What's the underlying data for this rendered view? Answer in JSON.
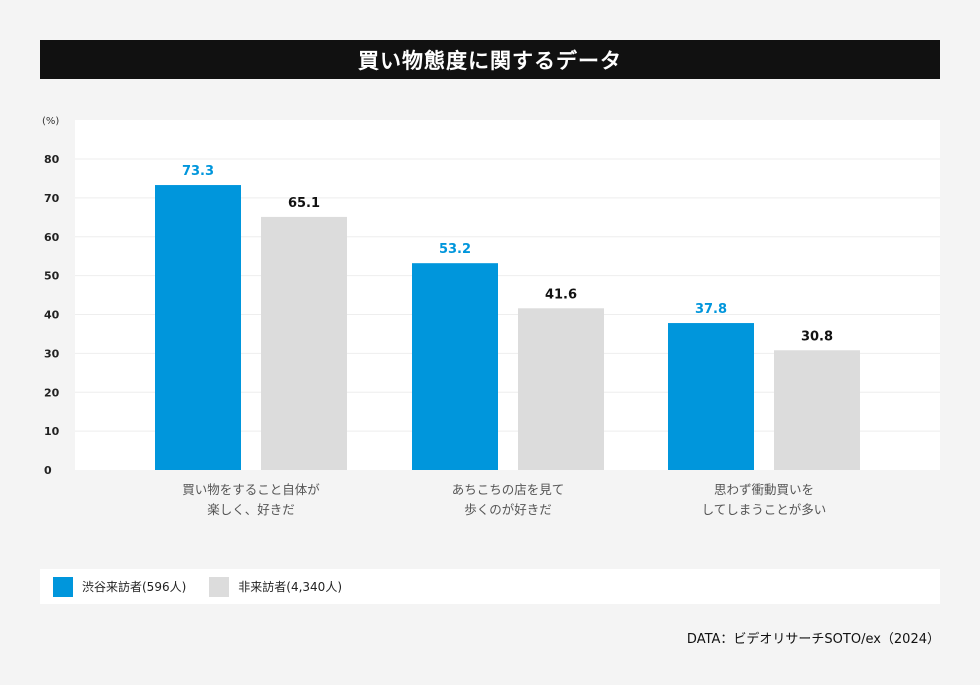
{
  "title": "買い物態度に関するデータ",
  "colors": {
    "series1": "#0096dc",
    "series2": "#dcdcdc",
    "label1": "#0096dc",
    "label2": "#111111"
  },
  "chart_data": {
    "type": "bar",
    "title": "買い物態度に関するデータ",
    "ylabel": "(%)",
    "ylim": [
      0,
      80
    ],
    "yticks": [
      "0",
      "10",
      "20",
      "30",
      "40",
      "50",
      "60",
      "70",
      "80"
    ],
    "categories": [
      [
        "買い物をすること自体が",
        "楽しく、好きだ"
      ],
      [
        "あちこちの店を見て",
        "歩くのが好きだ"
      ],
      [
        "思わず衝動買いを",
        "してしまうことが多い"
      ]
    ],
    "series": [
      {
        "name": "渋谷来訪者(596人)",
        "values": [
          73.3,
          53.2,
          37.8
        ]
      },
      {
        "name": "非来訪者(4,340人)",
        "values": [
          65.1,
          41.6,
          30.8
        ]
      }
    ],
    "grid": true,
    "legend": "bottom-left"
  },
  "legend": {
    "items": [
      "渋谷来訪者(596人)",
      "非来訪者(4,340人)"
    ]
  },
  "source": "DATA：ビデオリサーチSOTO/ex（2024）"
}
